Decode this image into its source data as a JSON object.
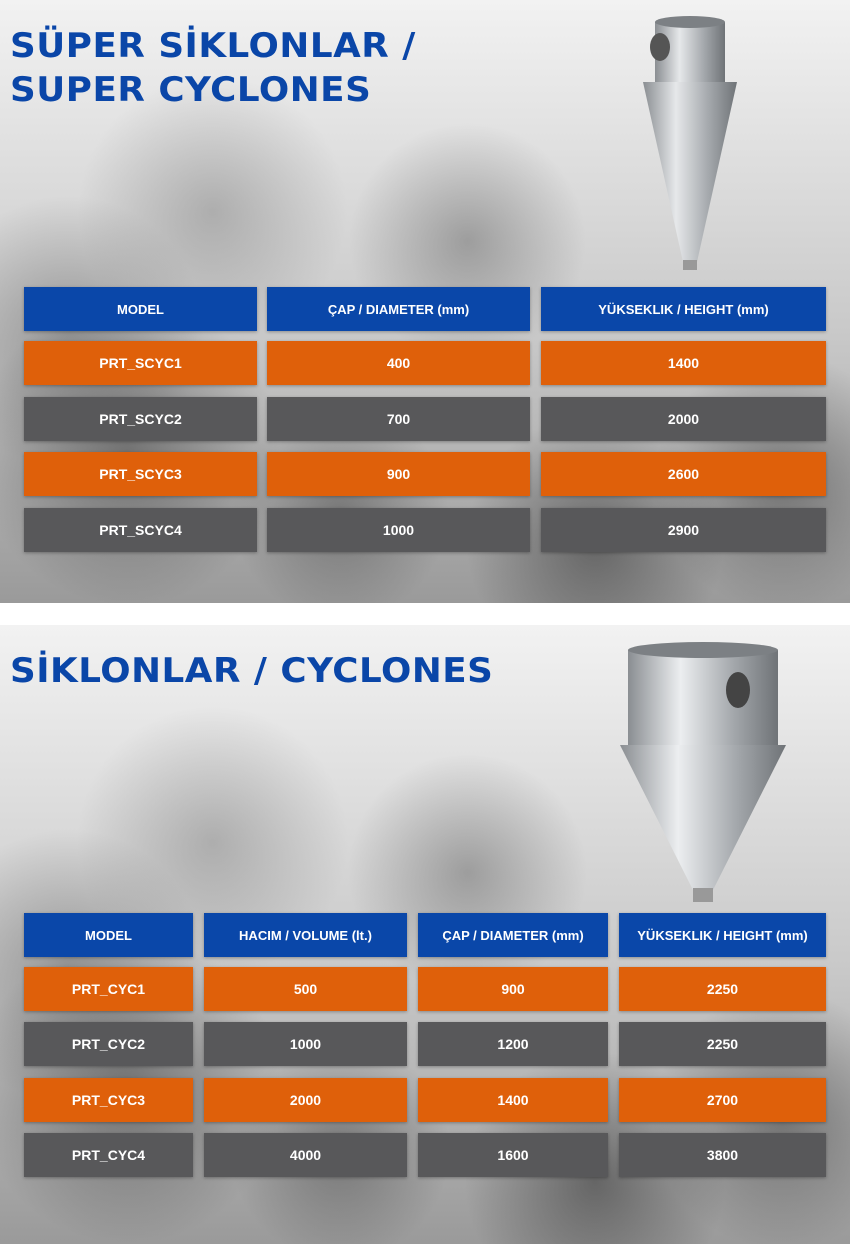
{
  "super_cyclones": {
    "title_line1": "SÜPER SİKLONLAR /",
    "title_line2": "SUPER CYCLONES",
    "headers": [
      "MODEL",
      "ÇAP / DIAMETER (mm)",
      "YÜKSEKLIK / HEIGHT (mm)"
    ],
    "rows": [
      [
        "PRT_SCYC1",
        "400",
        "1400"
      ],
      [
        "PRT_SCYC2",
        "700",
        "2000"
      ],
      [
        "PRT_SCYC3",
        "900",
        "2600"
      ],
      [
        "PRT_SCYC4",
        "1000",
        "2900"
      ]
    ]
  },
  "cyclones": {
    "title": "SİKLONLAR / CYCLONES",
    "headers": [
      "MODEL",
      "HACIM / VOLUME (lt.)",
      "ÇAP / DIAMETER (mm)",
      "YÜKSEKLIK / HEIGHT (mm)"
    ],
    "rows": [
      [
        "PRT_CYC1",
        "500",
        "900",
        "2250"
      ],
      [
        "PRT_CYC2",
        "1000",
        "1200",
        "2250"
      ],
      [
        "PRT_CYC3",
        "2000",
        "1400",
        "2700"
      ],
      [
        "PRT_CYC4",
        "4000",
        "1600",
        "3800"
      ]
    ]
  },
  "colors": {
    "header": "#0a47a9",
    "row_odd": "#df600a",
    "row_even": "#58585a",
    "title": "#0a46a8"
  }
}
